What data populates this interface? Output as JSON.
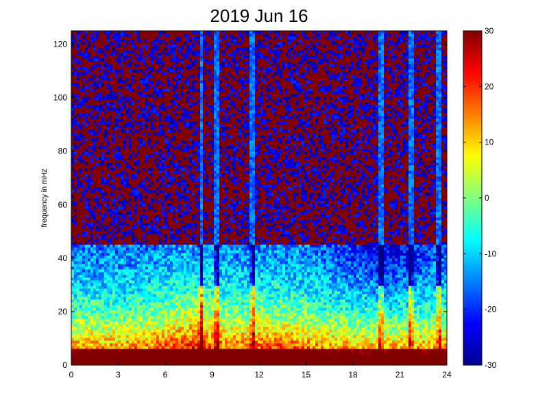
{
  "chart_data": {
    "type": "heatmap",
    "title": "2019 Jun 16",
    "xlabel": "",
    "ylabel": "frequency in mHz",
    "xlim": [
      0,
      24
    ],
    "ylim": [
      0,
      125
    ],
    "xticks": [
      0,
      3,
      6,
      9,
      12,
      15,
      18,
      21,
      24
    ],
    "xtick_labels": [
      "0",
      "3",
      "6",
      "9",
      "12",
      "15",
      "18",
      "21",
      "24"
    ],
    "yticks": [
      0,
      20,
      40,
      60,
      80,
      100,
      120
    ],
    "ytick_labels": [
      "0",
      "20",
      "40",
      "60",
      "80",
      "100",
      "120"
    ],
    "colorbar": {
      "colormap": "jet",
      "clim": [
        -30,
        30
      ],
      "ticks": [
        -30,
        -20,
        -10,
        0,
        10,
        20,
        30
      ],
      "tick_labels": [
        "-30",
        "-20",
        "-10",
        "0",
        "10",
        "20",
        "30"
      ]
    },
    "grid": false,
    "legend": "none",
    "features": {
      "low_frequency_band_mhz": [
        0,
        6
      ],
      "broadband_peak_hours": [
        6,
        9
      ],
      "vertical_streaks_hours": [
        8.3,
        9.3,
        11.6,
        19.8,
        21.7,
        23.5
      ]
    }
  }
}
